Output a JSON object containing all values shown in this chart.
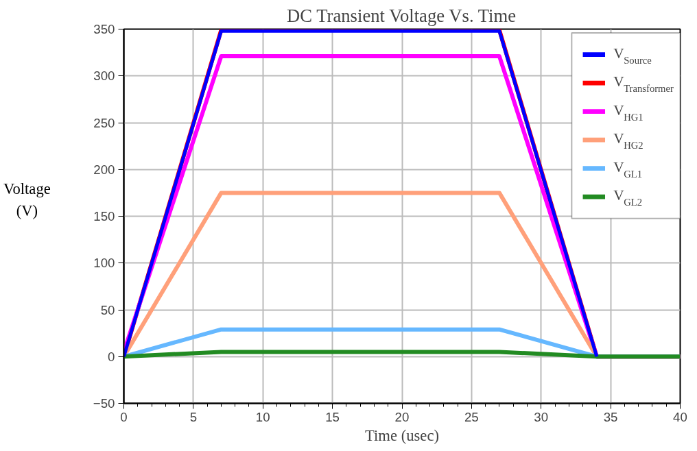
{
  "chart_data": {
    "type": "line",
    "title": "DC Transient Voltage Vs. Time",
    "xlabel": "Time (usec)",
    "ylabel": "Voltage (V)",
    "x": [
      0,
      7,
      27,
      34,
      40
    ],
    "series": [
      {
        "name": "V$_{Source}$",
        "color": "#0000ff",
        "x": [
          0,
          7,
          27,
          34
        ],
        "values": [
          0,
          348,
          348,
          0
        ]
      },
      {
        "name": "V$_{Transformer}$",
        "color": "#ff0000",
        "values": [
          0,
          349,
          349,
          0,
          0
        ]
      },
      {
        "name": "V$_{HG1}$",
        "color": "#ff00ff",
        "values": [
          5,
          321,
          321,
          0,
          0
        ]
      },
      {
        "name": "V$_{HG2}$",
        "color": "#ffa07a",
        "values": [
          0,
          175,
          175,
          0,
          0
        ]
      },
      {
        "name": "V$_{GL1}$",
        "color": "#66b8ff",
        "values": [
          0,
          29,
          29,
          0,
          0
        ]
      },
      {
        "name": "V$_{GL2}$",
        "color": "#228b22",
        "values": [
          0,
          5,
          5,
          0,
          0
        ]
      }
    ],
    "xlim": [
      0,
      40
    ],
    "ylim": [
      -50,
      350
    ],
    "xticks": [
      0,
      5,
      10,
      15,
      20,
      25,
      30,
      35,
      40
    ],
    "yticks": [
      -50,
      0,
      50,
      100,
      150,
      200,
      250,
      300,
      350
    ],
    "grid": true,
    "legend": "top right",
    "marker": "none",
    "line_style": "solid"
  }
}
